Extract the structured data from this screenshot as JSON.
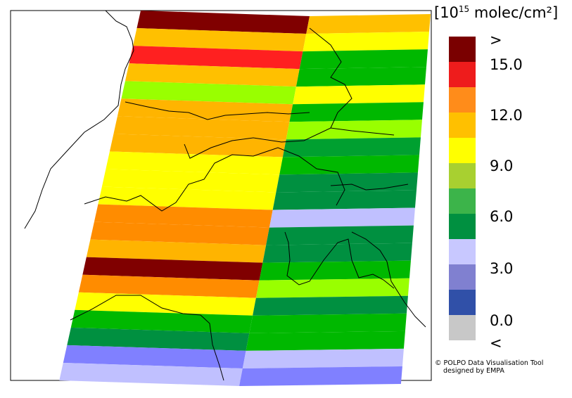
{
  "map": {
    "background_color": "#ffffff",
    "border_color": "#000000",
    "swath_rows": [
      {
        "west": "#800000",
        "east": "#ffc000"
      },
      {
        "west": "#ffc000",
        "east": "#ffff00"
      },
      {
        "west": "#ff2020",
        "east": "#00b800"
      },
      {
        "west": "#ffc000",
        "east": "#00b800"
      },
      {
        "west": "#99ff00",
        "east": "#ffff00"
      },
      {
        "west": "#ffb400",
        "east": "#00b800"
      },
      {
        "west": "#ffb400",
        "east": "#99ff00"
      },
      {
        "west": "#ffb400",
        "east": "#00a030"
      },
      {
        "west": "#ffff00",
        "east": "#00b800"
      },
      {
        "west": "#ffff00",
        "east": "#009040"
      },
      {
        "west": "#ffff00",
        "east": "#009040"
      },
      {
        "west": "#ff8c00",
        "east": "#c0c0ff"
      },
      {
        "west": "#ff8c00",
        "east": "#009040"
      },
      {
        "west": "#ffb400",
        "east": "#009040"
      },
      {
        "west": "#800000",
        "east": "#00b800"
      },
      {
        "west": "#ff8c00",
        "east": "#99ff00"
      },
      {
        "west": "#ffff00",
        "east": "#009040"
      },
      {
        "west": "#00b800",
        "east": "#00b800"
      },
      {
        "west": "#009040",
        "east": "#00b800"
      },
      {
        "west": "#8080ff",
        "east": "#c0c0ff"
      },
      {
        "west": "#c0c0ff",
        "east": "#8080ff"
      }
    ]
  },
  "legend": {
    "unit_prefix": "[10",
    "unit_exponent": "15",
    "unit_suffix": " molec/cm²]",
    "colors": [
      "#7a0000",
      "#ee1c1c",
      "#ff8c1a",
      "#ffc000",
      "#ffff00",
      "#a8d030",
      "#3cb44a",
      "#009040",
      "#c8c8ff",
      "#8080d0",
      "#3050a8",
      "#c8c8c8"
    ],
    "labels": [
      ">",
      "15.0",
      "12.0",
      "9.0",
      "6.0",
      "3.0",
      "0.0",
      "<"
    ]
  },
  "credit": {
    "line1": "© POLPO Data Visualisation Tool",
    "line2": "designed by EMPA"
  }
}
